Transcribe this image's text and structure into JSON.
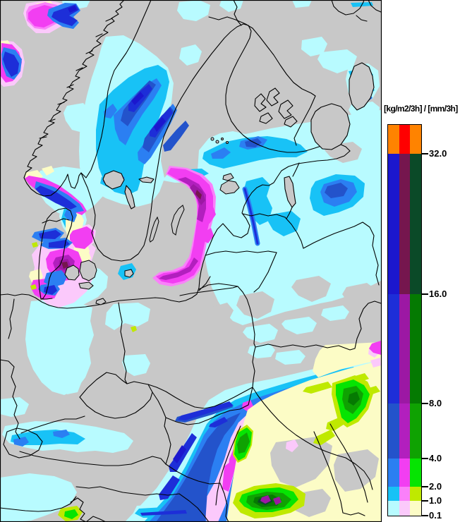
{
  "legend": {
    "title": "[kg/m2/3h] / [mm/3h]",
    "columns": [
      "left",
      "middle",
      "right"
    ],
    "ticks": [
      "32.0",
      "16.0",
      "8.0",
      "4.0",
      "2.0",
      "1.0",
      "0.1"
    ],
    "rows": [
      {
        "from": "32.0",
        "to": null,
        "colors": [
          "#FF8300",
          "#FF0000",
          "#FF8300"
        ]
      },
      {
        "from": "16.0",
        "to": "32.0",
        "colors": [
          "#1B17CE",
          "#75164E",
          "#0B4A28"
        ]
      },
      {
        "from": "8.0",
        "to": "16.0",
        "colors": [
          "#1D2ED8",
          "#9C18A4",
          "#057A02"
        ]
      },
      {
        "from": "4.0",
        "to": "8.0",
        "colors": [
          "#2353CB",
          "#B21FBE",
          "#0FA202"
        ]
      },
      {
        "from": "2.0",
        "to": "4.0",
        "colors": [
          "#2B7FF2",
          "#F23EF2",
          "#06E402"
        ]
      },
      {
        "from": "1.0",
        "to": "2.0",
        "colors": [
          "#18C2F6",
          "#FA80FA",
          "#BFE900"
        ]
      },
      {
        "from": "0.1",
        "to": "1.0",
        "colors": [
          "#B8FBFF",
          "#FBC9FB",
          "#FCFCC6"
        ]
      }
    ]
  },
  "map": {
    "background_color": "#C8C8C8",
    "border_line_color": "#000000",
    "frame_color": "#000000",
    "precipitation_colors": {
      "snow_0_1": "#B8FBFF",
      "snow_1_2": "#18C2F6",
      "snow_2_4": "#2B7FF2",
      "snow_4_8": "#2353CB",
      "snow_8_16": "#1D2ED8",
      "snow_16_32": "#1B17CE",
      "mixed_0_1": "#FBC9FB",
      "mixed_1_2": "#FA80FA",
      "mixed_2_4": "#F23EF2",
      "mixed_4_8": "#B21FBE",
      "mixed_8_16": "#9C18A4",
      "mixed_16_32": "#75164E",
      "rain_0_1": "#FCFCC6",
      "rain_1_2": "#BFE900",
      "rain_2_4": "#06E402",
      "rain_4_8": "#0FA202",
      "rain_8_16": "#057A02",
      "rain_16_32": "#0B4A28",
      "extreme_orange": "#FF8300",
      "extreme_red": "#FF0000"
    }
  }
}
